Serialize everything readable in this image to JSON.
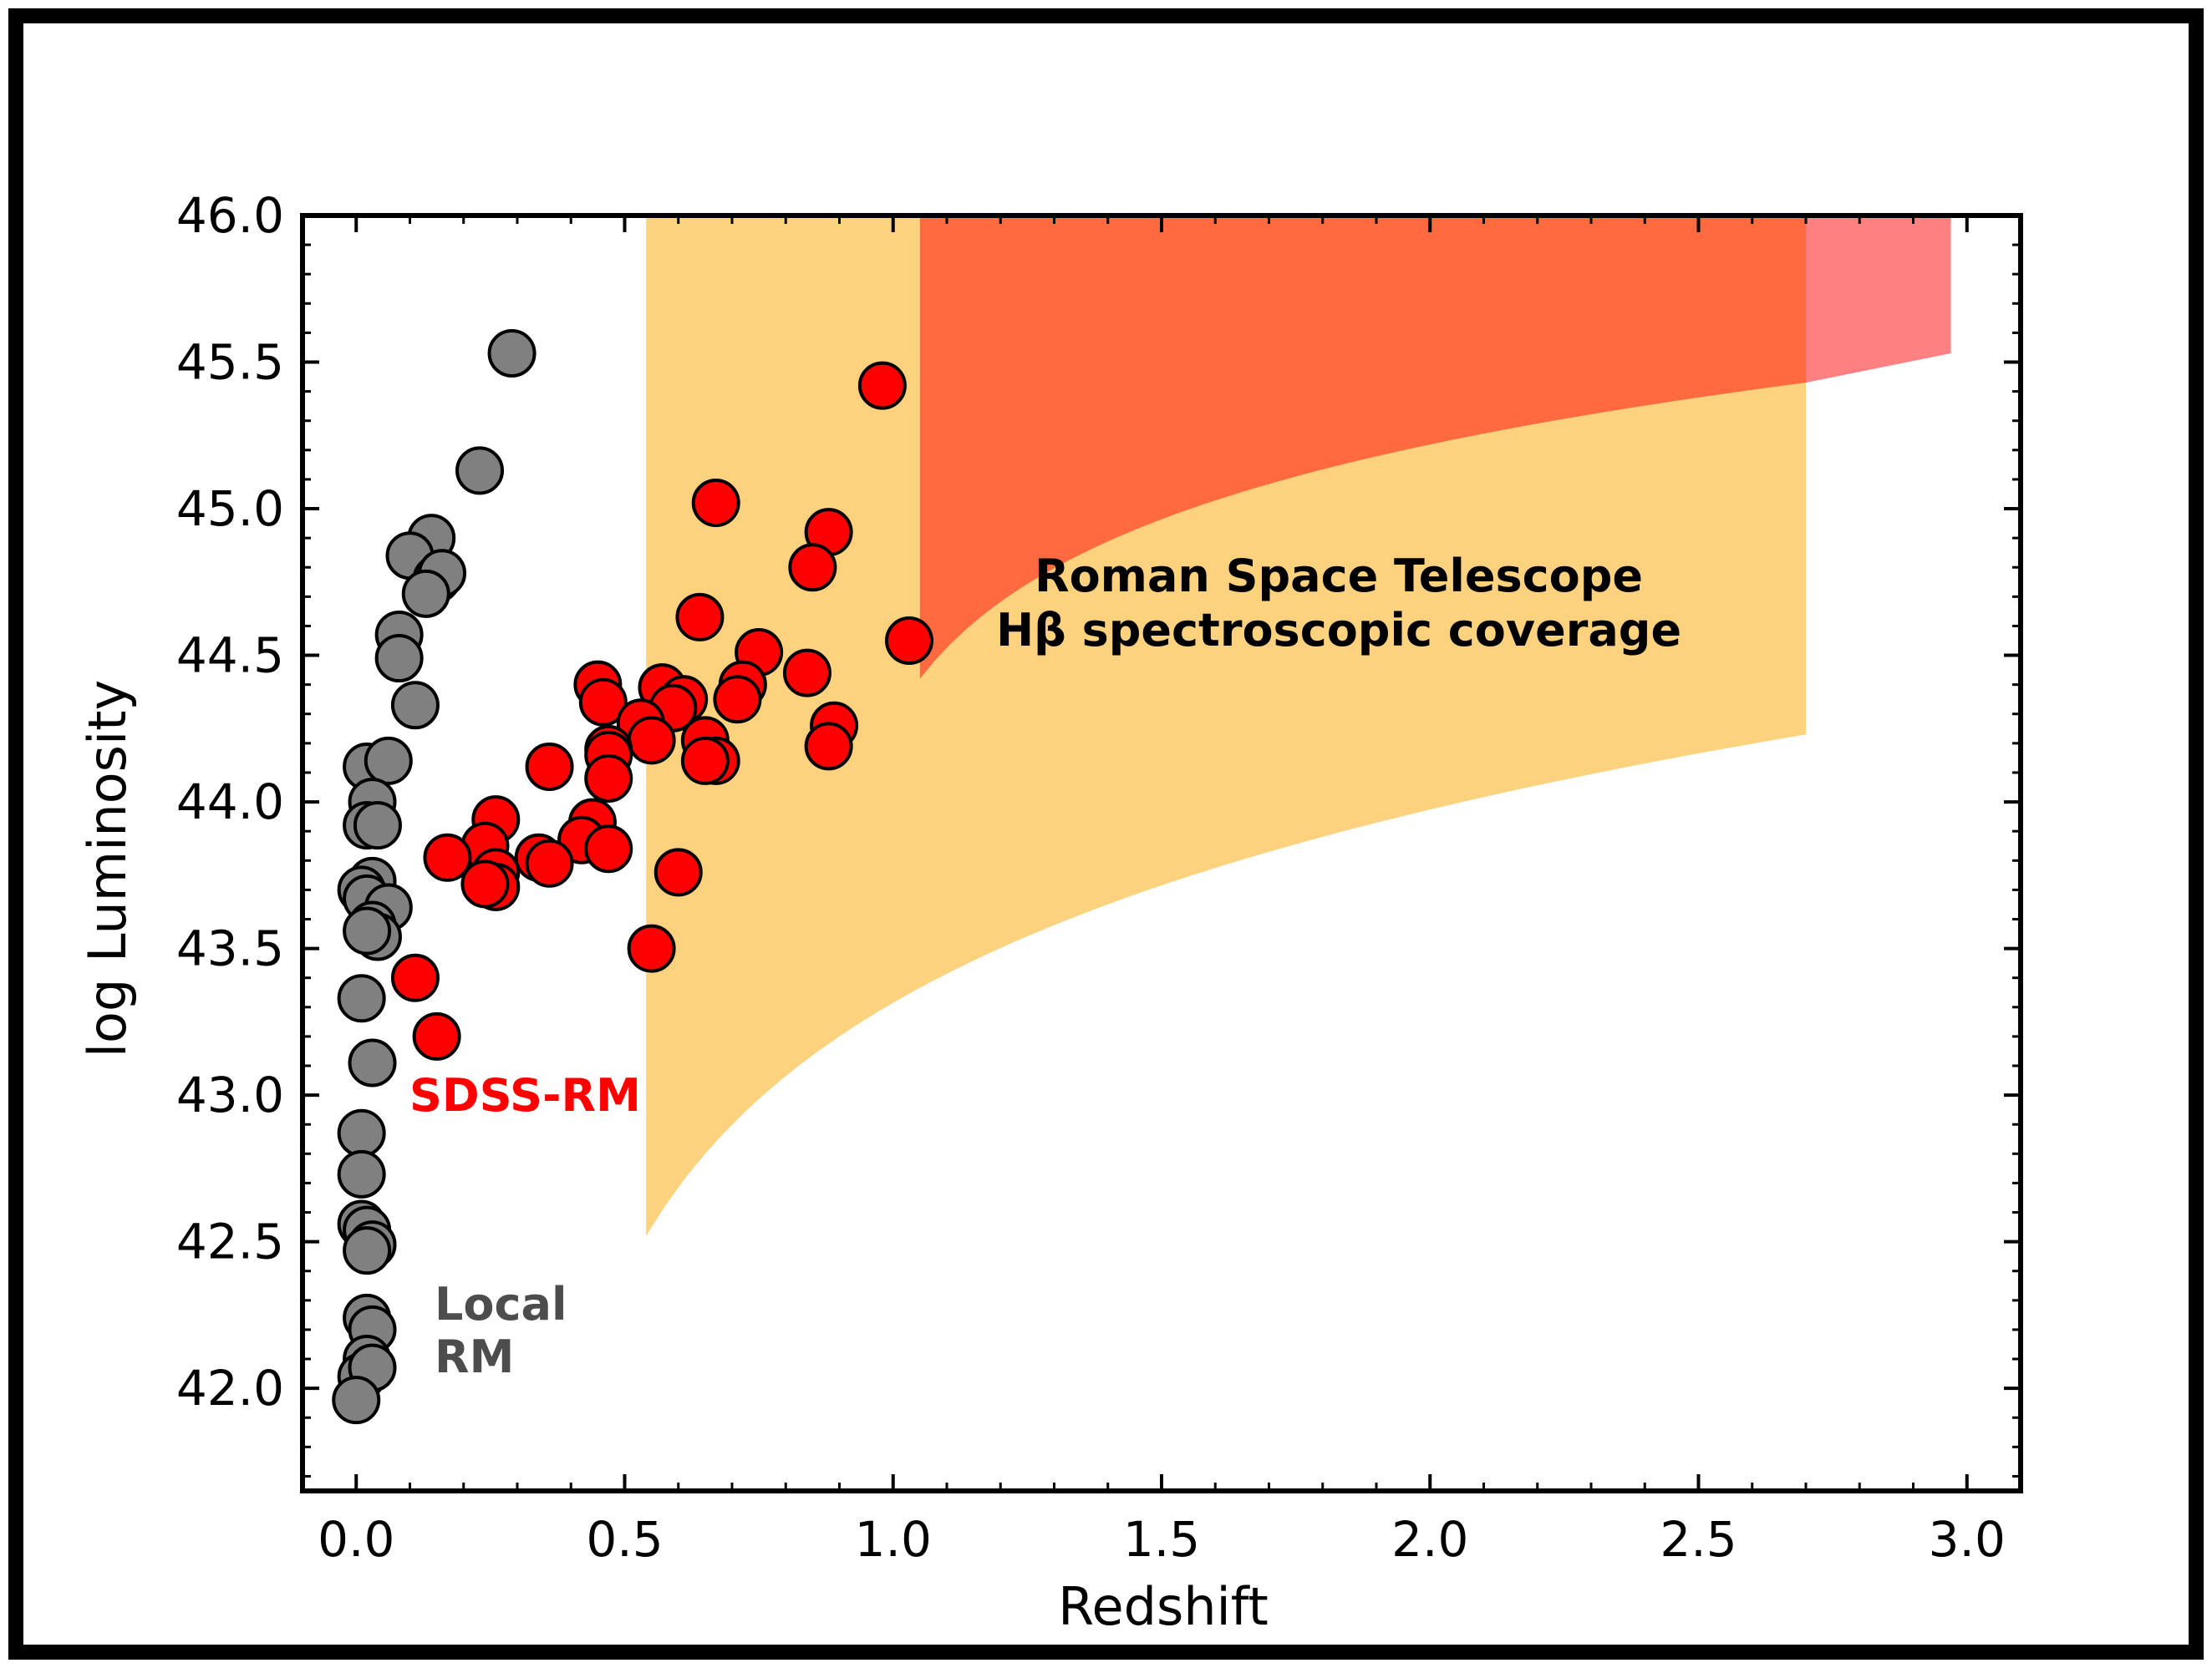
{
  "chart_data": {
    "type": "scatter",
    "xlabel": "Redshift",
    "ylabel": "log Luminosity",
    "xlim": [
      -0.1,
      3.1
    ],
    "ylim": [
      41.65,
      46.0
    ],
    "xticks": [
      "0.0",
      "0.5",
      "1.0",
      "1.5",
      "2.0",
      "2.5",
      "3.0"
    ],
    "yticks": [
      "42.0",
      "42.5",
      "43.0",
      "43.5",
      "44.0",
      "44.5",
      "45.0",
      "45.5",
      "46.0"
    ],
    "annotations": {
      "roman_line1": "Roman Space Telescope",
      "roman_line2": "Hβ spectroscopic coverage",
      "sdss": "SDSS-RM",
      "local_line1": "Local",
      "local_line2": "RM"
    },
    "colors": {
      "roman_orange": "#FDD27F",
      "roman_red": "#FF6A40",
      "roman_pink": "#FF8080",
      "sdss_marker": "#FF0000",
      "local_marker": "#808080",
      "local_text": "#4D4D4D",
      "sdss_text": "#FF0000"
    },
    "regions": {
      "orange_band": {
        "x_min": 0.54,
        "x_max": 2.7,
        "lower_at_x_min": 42.52,
        "lower_at_x_max": 44.23,
        "top": 46.0
      },
      "red_band": {
        "x_min": 1.05,
        "x_max": 2.7,
        "lower_at_x_min": 44.42,
        "lower_at_x_max": 45.43,
        "top": 46.0
      },
      "pink_band": {
        "x_min": 2.7,
        "x_max": 2.97,
        "lower_at_x_min": 45.43,
        "lower_at_x_max": 45.53,
        "top": 46.0
      }
    },
    "series": [
      {
        "name": "SDSS-RM",
        "points": [
          [
            0.98,
            45.42
          ],
          [
            0.67,
            45.02
          ],
          [
            0.88,
            44.92
          ],
          [
            0.85,
            44.8
          ],
          [
            0.64,
            44.63
          ],
          [
            1.03,
            44.55
          ],
          [
            0.75,
            44.51
          ],
          [
            0.84,
            44.44
          ],
          [
            0.72,
            44.4
          ],
          [
            0.57,
            44.39
          ],
          [
            0.45,
            44.4
          ],
          [
            0.71,
            44.35
          ],
          [
            0.61,
            44.35
          ],
          [
            0.46,
            44.34
          ],
          [
            0.59,
            44.32
          ],
          [
            0.53,
            44.27
          ],
          [
            0.89,
            44.26
          ],
          [
            0.55,
            44.21
          ],
          [
            0.65,
            44.21
          ],
          [
            0.88,
            44.19
          ],
          [
            0.47,
            44.18
          ],
          [
            0.47,
            44.16
          ],
          [
            0.67,
            44.14
          ],
          [
            0.65,
            44.14
          ],
          [
            0.36,
            44.12
          ],
          [
            0.47,
            44.08
          ],
          [
            0.26,
            43.94
          ],
          [
            0.44,
            43.93
          ],
          [
            0.42,
            43.87
          ],
          [
            0.24,
            43.85
          ],
          [
            0.47,
            43.84
          ],
          [
            0.17,
            43.81
          ],
          [
            0.34,
            43.81
          ],
          [
            0.36,
            43.79
          ],
          [
            0.26,
            43.76
          ],
          [
            0.6,
            43.76
          ],
          [
            0.26,
            43.71
          ],
          [
            0.24,
            43.72
          ],
          [
            0.55,
            43.5
          ],
          [
            0.11,
            43.4
          ],
          [
            0.15,
            43.2
          ]
        ]
      },
      {
        "name": "Local RM",
        "points": [
          [
            0.29,
            45.53
          ],
          [
            0.23,
            45.13
          ],
          [
            0.14,
            44.9
          ],
          [
            0.1,
            44.84
          ],
          [
            0.15,
            44.76
          ],
          [
            0.16,
            44.78
          ],
          [
            0.13,
            44.71
          ],
          [
            0.08,
            44.57
          ],
          [
            0.08,
            44.49
          ],
          [
            0.11,
            44.33
          ],
          [
            0.02,
            44.12
          ],
          [
            0.06,
            44.14
          ],
          [
            0.03,
            44.0
          ],
          [
            0.02,
            43.92
          ],
          [
            0.04,
            43.92
          ],
          [
            0.03,
            43.73
          ],
          [
            0.01,
            43.7
          ],
          [
            0.02,
            43.67
          ],
          [
            0.06,
            43.64
          ],
          [
            0.03,
            43.58
          ],
          [
            0.04,
            43.54
          ],
          [
            0.02,
            43.56
          ],
          [
            0.01,
            43.33
          ],
          [
            0.03,
            43.11
          ],
          [
            0.01,
            42.87
          ],
          [
            0.01,
            42.73
          ],
          [
            0.01,
            42.56
          ],
          [
            0.02,
            42.54
          ],
          [
            0.03,
            42.49
          ],
          [
            0.02,
            42.47
          ],
          [
            0.02,
            42.24
          ],
          [
            0.03,
            42.2
          ],
          [
            0.02,
            42.1
          ],
          [
            0.01,
            42.04
          ],
          [
            0.03,
            42.07
          ],
          [
            0.0,
            41.96
          ]
        ]
      }
    ]
  }
}
